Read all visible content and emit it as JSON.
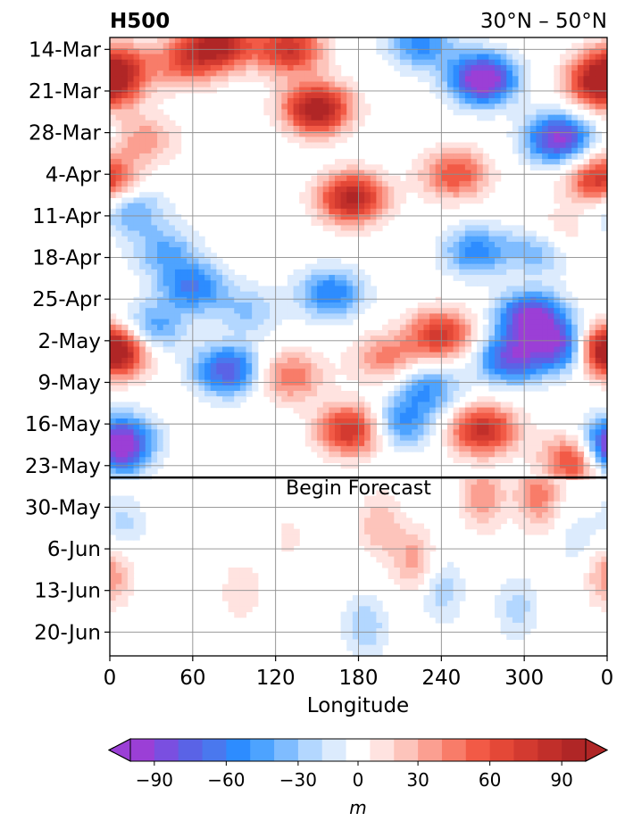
{
  "chart_data": {
    "type": "heatmap",
    "title_left": "H500",
    "title_right": "30°N – 50°N",
    "xlabel": "Longitude",
    "ylabel": "",
    "x_ticks": [
      "0",
      "60",
      "120",
      "180",
      "240",
      "300",
      "0"
    ],
    "xlim": [
      0,
      360
    ],
    "y_ticks": [
      "14-Mar",
      "21-Mar",
      "28-Mar",
      "4-Apr",
      "11-Apr",
      "18-Apr",
      "25-Apr",
      "2-May",
      "9-May",
      "16-May",
      "23-May",
      "30-May",
      "6-Jun",
      "13-Jun",
      "20-Jun"
    ],
    "ylim": [
      "12-Mar",
      "24-Jun"
    ],
    "y_reversed": true,
    "grid": true,
    "forecast_start": "25-May",
    "annotation": "Begin Forecast",
    "colorbar": {
      "label": "m",
      "tick_labels": [
        "−90",
        "−60",
        "−30",
        "0",
        "30",
        "60",
        "90"
      ],
      "ticks": [
        -90,
        -60,
        -30,
        0,
        30,
        60,
        90
      ],
      "levels": [
        -100,
        -90,
        -80,
        -70,
        -60,
        -50,
        -40,
        -30,
        -20,
        -10,
        10,
        20,
        30,
        40,
        50,
        60,
        70,
        80,
        90,
        100
      ],
      "colors": [
        "#9b3fd6",
        "#7a4fe0",
        "#5a63e6",
        "#4a78ee",
        "#2d8cff",
        "#4da3ff",
        "#7fbcff",
        "#b3d7ff",
        "#dcebfd",
        "#ffffff",
        "#ffe3e0",
        "#fdc4bb",
        "#fb9f91",
        "#f87c69",
        "#f25a46",
        "#e44837",
        "#d33a30",
        "#c12f2a",
        "#b02626"
      ],
      "extend": "both",
      "extend_min_color": "#9b3fd6",
      "extend_max_color": "#b02626"
    },
    "anomaly_features": [
      {
        "lon": 150,
        "date": "24-Mar",
        "value": 105
      },
      {
        "lon": 175,
        "date": "8-Apr",
        "value": 95
      },
      {
        "lon": 80,
        "date": "13-Mar",
        "value": 90
      },
      {
        "lon": 130,
        "date": "14-Mar",
        "value": 80
      },
      {
        "lon": 225,
        "date": "13-Mar",
        "value": -55
      },
      {
        "lon": 270,
        "date": "19-Mar",
        "value": -110
      },
      {
        "lon": 325,
        "date": "29-Mar",
        "value": -95
      },
      {
        "lon": 15,
        "date": "10-Apr",
        "value": -45
      },
      {
        "lon": 40,
        "date": "17-Apr",
        "value": -40
      },
      {
        "lon": 60,
        "date": "23-Apr",
        "value": -60
      },
      {
        "lon": 160,
        "date": "24-Apr",
        "value": -60
      },
      {
        "lon": 265,
        "date": "17-Apr",
        "value": -55
      },
      {
        "lon": 305,
        "date": "28-Apr",
        "value": -95
      },
      {
        "lon": 315,
        "date": "16-Apr",
        "value": -90
      },
      {
        "lon": 330,
        "date": "3-May",
        "value": -95
      },
      {
        "lon": 290,
        "date": "5-May",
        "value": -80
      },
      {
        "lon": 230,
        "date": "10-May",
        "value": -50
      },
      {
        "lon": 85,
        "date": "7-May",
        "value": -80
      },
      {
        "lon": 30,
        "date": "30-Apr",
        "value": -50
      },
      {
        "lon": 10,
        "date": "18-May",
        "value": -55
      },
      {
        "lon": 210,
        "date": "16-May",
        "value": -55
      },
      {
        "lon": 240,
        "date": "1-May",
        "value": 75
      },
      {
        "lon": 320,
        "date": "15-Apr",
        "value": 75
      },
      {
        "lon": 355,
        "date": "20-Mar",
        "value": 85
      },
      {
        "lon": 355,
        "date": "5-Apr",
        "value": 80
      },
      {
        "lon": 5,
        "date": "17-Mar",
        "value": 65
      },
      {
        "lon": 5,
        "date": "4-May",
        "value": 70
      },
      {
        "lon": 200,
        "date": "5-May",
        "value": 45
      },
      {
        "lon": 175,
        "date": "17-May",
        "value": 85
      },
      {
        "lon": 270,
        "date": "17-May",
        "value": 85
      },
      {
        "lon": 355,
        "date": "3-May",
        "value": 80
      },
      {
        "lon": 340,
        "date": "22-May",
        "value": 95
      },
      {
        "lon": 130,
        "date": "8-May",
        "value": 50
      },
      {
        "lon": 100,
        "date": "27-Apr",
        "value": -30
      },
      {
        "lon": 250,
        "date": "4-Apr",
        "value": 60
      },
      {
        "lon": 25,
        "date": "29-Mar",
        "value": 35
      },
      {
        "lon": 0,
        "date": "21-May",
        "value": -50
      },
      {
        "lon": 360,
        "date": "21-May",
        "value": -50
      },
      {
        "lon": 55,
        "date": "16-Mar",
        "value": 55
      }
    ],
    "forecast_features": [
      {
        "lon": 10,
        "date": "2-Jun",
        "value": -25
      },
      {
        "lon": 185,
        "date": "19-Jun",
        "value": -30
      },
      {
        "lon": 240,
        "date": "13-Jun",
        "value": -28
      },
      {
        "lon": 295,
        "date": "16-Jun",
        "value": -25
      },
      {
        "lon": 340,
        "date": "5-Jun",
        "value": -18
      },
      {
        "lon": 195,
        "date": "2-Jun",
        "value": 28
      },
      {
        "lon": 220,
        "date": "8-Jun",
        "value": 35
      },
      {
        "lon": 310,
        "date": "28-May",
        "value": 45
      },
      {
        "lon": 360,
        "date": "10-Jun",
        "value": 40
      },
      {
        "lon": 95,
        "date": "13-Jun",
        "value": 18
      },
      {
        "lon": 130,
        "date": "4-Jun",
        "value": 12
      },
      {
        "lon": 270,
        "date": "28-May",
        "value": 40
      }
    ]
  }
}
